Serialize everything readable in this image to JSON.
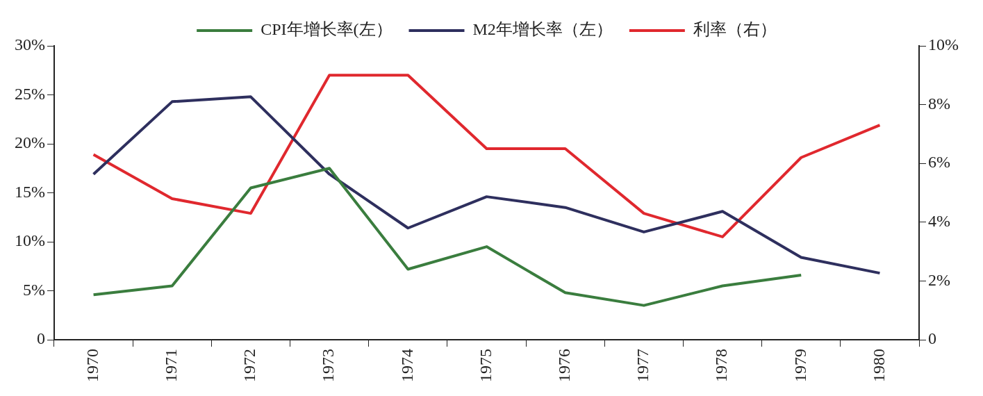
{
  "chart_data": {
    "type": "line",
    "categories": [
      "1970",
      "1971",
      "1972",
      "1973",
      "1974",
      "1975",
      "1976",
      "1977",
      "1978",
      "1979",
      "1980"
    ],
    "series": [
      {
        "name": "CPI年增长率(左）",
        "color": "#3a7d3e",
        "values": [
          4.6,
          5.5,
          15.5,
          17.5,
          7.2,
          9.5,
          4.8,
          3.5,
          5.5,
          6.6,
          null
        ]
      },
      {
        "name": "M2年增长率（左）",
        "color": "#2e2f5e",
        "values": [
          16.9,
          24.3,
          24.8,
          16.9,
          11.4,
          14.6,
          13.5,
          11.0,
          13.1,
          8.4,
          6.8
        ]
      },
      {
        "name": "利率（右）",
        "color": "#e0282e",
        "axis": "y2",
        "values": [
          6.3,
          4.8,
          4.3,
          9.0,
          9.0,
          6.5,
          6.5,
          4.3,
          3.5,
          6.2,
          7.3
        ]
      }
    ],
    "ylim": [
      0,
      30
    ],
    "yticks": [
      {
        "value": 0,
        "label": "0"
      },
      {
        "value": 5,
        "label": "5%"
      },
      {
        "value": 10,
        "label": "10%"
      },
      {
        "value": 15,
        "label": "15%"
      },
      {
        "value": 20,
        "label": "20%"
      },
      {
        "value": 25,
        "label": "25%"
      },
      {
        "value": 30,
        "label": "30%"
      }
    ],
    "y2lim": [
      0,
      10
    ],
    "y2ticks": [
      {
        "value": 0,
        "label": "0"
      },
      {
        "value": 2,
        "label": "2%"
      },
      {
        "value": 4,
        "label": "4%"
      },
      {
        "value": 6,
        "label": "6%"
      },
      {
        "value": 8,
        "label": "8%"
      },
      {
        "value": 10,
        "label": "10%"
      }
    ],
    "grid": false,
    "legend": "top",
    "marker": "none",
    "line_style": "solid"
  }
}
